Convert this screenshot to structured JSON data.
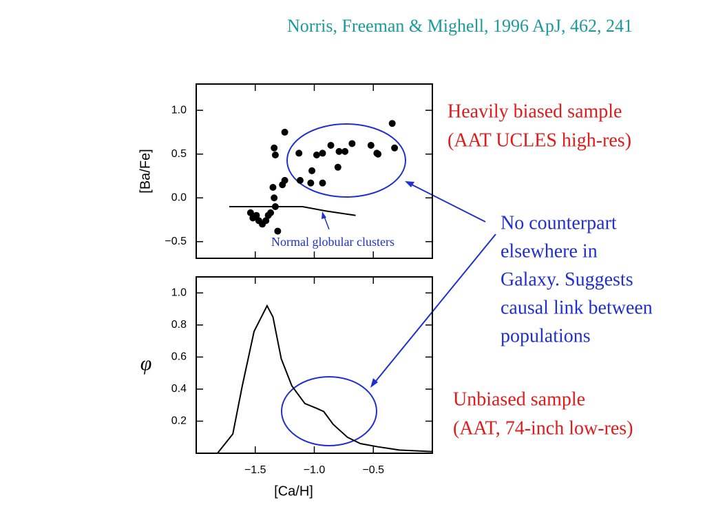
{
  "citation": "Norris, Freeman & Mighell, 1996 ApJ, 462, 241",
  "biased": [
    "Heavily biased sample",
    "(AAT UCLES high-res)"
  ],
  "note": [
    "No counterpart",
    "elsewhere in",
    "Galaxy.  Suggests",
    "causal link between",
    "populations"
  ],
  "unbiased": [
    "Unbiased sample",
    "(AAT, 74-inch low-res)"
  ],
  "chart_data": [
    {
      "type": "scatter",
      "ylabel": "[Ba/Fe]",
      "color": "#000000",
      "xlim": [
        -2.0,
        0.0
      ],
      "ylim": [
        -0.69,
        1.3
      ],
      "yticks": [
        {
          "value": 1,
          "label": "1.0"
        },
        0.5,
        {
          "value": 0,
          "label": "0.0"
        },
        {
          "value": -0.5,
          "label": "−0.5"
        }
      ],
      "x": [
        -1.54,
        -1.52,
        -1.49,
        -1.47,
        -1.44,
        -1.41,
        -1.39,
        -1.37,
        -1.33,
        -1.34,
        -1.35,
        -1.27,
        -1.25,
        -1.34,
        -1.33,
        -1.25,
        -1.31,
        -1.13,
        -1.12,
        -1.02,
        -1.03,
        -0.98,
        -0.93,
        -0.93,
        -0.86,
        -0.8,
        -0.79,
        -0.74,
        -0.68,
        -0.52,
        -0.47,
        -0.46,
        -0.34,
        -0.32
      ],
      "values": [
        -0.17,
        -0.23,
        -0.2,
        -0.26,
        -0.3,
        -0.26,
        -0.2,
        -0.17,
        -0.1,
        0.0,
        0.12,
        0.15,
        0.2,
        0.57,
        0.49,
        0.75,
        -0.38,
        0.51,
        0.2,
        0.31,
        0.17,
        0.49,
        0.51,
        0.17,
        0.6,
        0.35,
        0.53,
        0.53,
        0.62,
        0.6,
        0.51,
        0.5,
        0.85,
        0.57
      ],
      "line": {
        "name": "Normal globular clusters",
        "x": [
          -1.72,
          -1.3,
          -1.1,
          -0.9,
          -0.65
        ],
        "values": [
          -0.1,
          -0.1,
          -0.1,
          -0.15,
          -0.2
        ]
      }
    },
    {
      "type": "line",
      "ylabel": "φ",
      "xlabel": "[Ca/H]",
      "color": "#000000",
      "xlim": [
        -2.0,
        0.0
      ],
      "ylim": [
        0,
        1.1
      ],
      "xticks": [
        {
          "value": -1.5,
          "label": "−1.5"
        },
        {
          "value": -1.0,
          "label": "−1.0"
        },
        {
          "value": -0.5,
          "label": "−0.5"
        }
      ],
      "yticks": [
        {
          "value": 1,
          "label": "1.0"
        },
        0.8,
        0.6,
        0.4,
        0.2
      ],
      "x": [
        -1.82,
        -1.69,
        -1.61,
        -1.51,
        -1.4,
        -1.35,
        -1.28,
        -1.19,
        -1.08,
        -0.98,
        -0.92,
        -0.84,
        -0.72,
        -0.61,
        -0.46,
        -0.37,
        -0.28,
        0.0
      ],
      "values": [
        0.0,
        0.12,
        0.42,
        0.76,
        0.92,
        0.85,
        0.59,
        0.42,
        0.31,
        0.28,
        0.26,
        0.18,
        0.1,
        0.06,
        0.04,
        0.03,
        0.02,
        0.01
      ]
    }
  ]
}
